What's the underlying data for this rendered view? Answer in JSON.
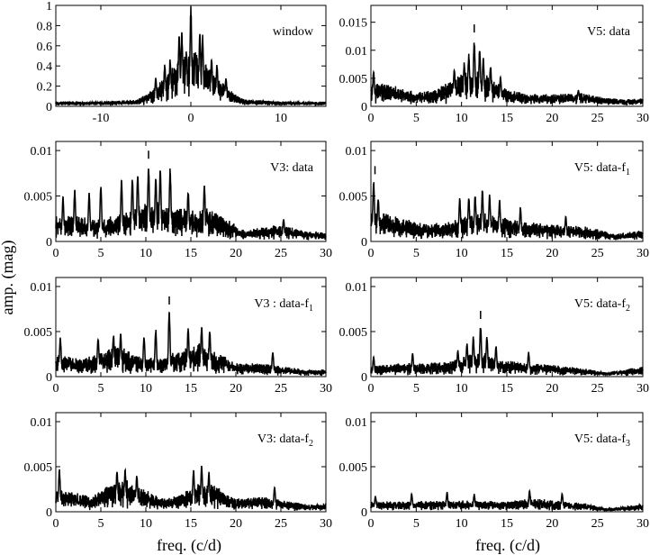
{
  "figure": {
    "ylabel": "amp. (mag)",
    "xlabel": "freq. (c/d)"
  },
  "chart_data": [
    {
      "type": "line",
      "title": "window",
      "xlim": [
        -15,
        15
      ],
      "ylim": [
        0,
        1
      ],
      "xticks": [
        -10,
        0,
        10
      ],
      "xticklabels": [
        "-10",
        "0",
        "10"
      ],
      "yticks": [
        0,
        0.2,
        0.4,
        0.6,
        0.8,
        1
      ],
      "yticklabels": [
        "0",
        "0.2",
        "0.4",
        "0.6",
        "0.8",
        "1"
      ],
      "marker": null,
      "peaks": [
        [
          -3.9,
          0.29
        ],
        [
          -2.9,
          0.42
        ],
        [
          -2.3,
          0.48
        ],
        [
          -1.3,
          0.72
        ],
        [
          -1.0,
          0.74
        ],
        [
          -0.5,
          0.55
        ],
        [
          0,
          1.0
        ],
        [
          0.5,
          0.55
        ],
        [
          1.0,
          0.74
        ],
        [
          1.3,
          0.72
        ],
        [
          2.3,
          0.48
        ],
        [
          2.9,
          0.42
        ],
        [
          3.9,
          0.29
        ]
      ],
      "envelope": [
        [
          -15,
          0.05
        ],
        [
          -10,
          0.05
        ],
        [
          -6,
          0.07
        ],
        [
          -5,
          0.12
        ],
        [
          -4,
          0.2
        ],
        [
          -3,
          0.3
        ],
        [
          -2,
          0.42
        ],
        [
          -1,
          0.52
        ],
        [
          0,
          0.55
        ],
        [
          1,
          0.52
        ],
        [
          2,
          0.42
        ],
        [
          3,
          0.3
        ],
        [
          4,
          0.2
        ],
        [
          5,
          0.12
        ],
        [
          6,
          0.07
        ],
        [
          10,
          0.05
        ],
        [
          15,
          0.05
        ]
      ]
    },
    {
      "type": "line",
      "title": "V5: data",
      "xlim": [
        0,
        30
      ],
      "ylim": [
        0,
        0.018
      ],
      "xticks": [
        0,
        5,
        10,
        15,
        20,
        25,
        30
      ],
      "xticklabels": [
        "0",
        "5",
        "10",
        "15",
        "20",
        "25",
        "30"
      ],
      "yticks": [
        0,
        0.005,
        0.01,
        0.015
      ],
      "yticklabels": [
        "0",
        "0.005",
        "0.01",
        "0.015"
      ],
      "marker": 11.4,
      "peaks": [
        [
          0.3,
          0.0065
        ],
        [
          9.2,
          0.007
        ],
        [
          10.3,
          0.008
        ],
        [
          10.8,
          0.0095
        ],
        [
          11.4,
          0.0122
        ],
        [
          12.0,
          0.0105
        ],
        [
          12.4,
          0.009
        ],
        [
          13.2,
          0.0075
        ],
        [
          14.3,
          0.0055
        ],
        [
          22.9,
          0.003
        ]
      ],
      "envelope": [
        [
          0,
          0.0045
        ],
        [
          2,
          0.004
        ],
        [
          5,
          0.0025
        ],
        [
          7,
          0.003
        ],
        [
          8.5,
          0.0045
        ],
        [
          10,
          0.0058
        ],
        [
          11.5,
          0.0065
        ],
        [
          13,
          0.0055
        ],
        [
          15,
          0.003
        ],
        [
          18,
          0.0022
        ],
        [
          20,
          0.0022
        ],
        [
          23,
          0.0025
        ],
        [
          26,
          0.0015
        ],
        [
          28,
          0.0013
        ],
        [
          30,
          0.0015
        ]
      ]
    },
    {
      "type": "line",
      "title": "V3: data",
      "xlim": [
        0,
        30
      ],
      "ylim": [
        0,
        0.011
      ],
      "xticks": [
        0,
        5,
        10,
        15,
        20,
        25,
        30
      ],
      "xticklabels": [
        "0",
        "5",
        "10",
        "15",
        "20",
        "25",
        "30"
      ],
      "yticks": [
        0,
        0.005,
        0.01
      ],
      "yticklabels": [
        "0",
        "0.005",
        "0.01"
      ],
      "marker": 10.3,
      "peaks": [
        [
          0.8,
          0.005
        ],
        [
          2.1,
          0.0058
        ],
        [
          3.7,
          0.0055
        ],
        [
          5.0,
          0.0062
        ],
        [
          7.3,
          0.0068
        ],
        [
          8.5,
          0.0072
        ],
        [
          9.1,
          0.0078
        ],
        [
          10.3,
          0.0085
        ],
        [
          11.1,
          0.0072
        ],
        [
          11.6,
          0.0082
        ],
        [
          12.7,
          0.0082
        ],
        [
          14.7,
          0.0058
        ],
        [
          16.5,
          0.0064
        ],
        [
          25.3,
          0.0026
        ]
      ],
      "envelope": [
        [
          0,
          0.003
        ],
        [
          3,
          0.0028
        ],
        [
          5,
          0.0025
        ],
        [
          7,
          0.003
        ],
        [
          9,
          0.0042
        ],
        [
          11,
          0.0045
        ],
        [
          13,
          0.004
        ],
        [
          15,
          0.0035
        ],
        [
          17,
          0.0038
        ],
        [
          19,
          0.0025
        ],
        [
          21,
          0.0012
        ],
        [
          24,
          0.0018
        ],
        [
          26,
          0.0017
        ],
        [
          28,
          0.0012
        ],
        [
          30,
          0.001
        ]
      ]
    },
    {
      "type": "line",
      "title": "V5: data-f",
      "title_sub": "1",
      "xlim": [
        0,
        30
      ],
      "ylim": [
        0,
        0.011
      ],
      "xticks": [
        0,
        5,
        10,
        15,
        20,
        25,
        30
      ],
      "xticklabels": [
        "0",
        "5",
        "10",
        "15",
        "20",
        "25",
        "30"
      ],
      "yticks": [
        0,
        0.005,
        0.01
      ],
      "yticklabels": [
        "0",
        "0.005",
        "0.01"
      ],
      "marker": 0.45,
      "peaks": [
        [
          0.3,
          0.0068
        ],
        [
          0.8,
          0.005
        ],
        [
          9.8,
          0.0048
        ],
        [
          10.8,
          0.005
        ],
        [
          11.5,
          0.0052
        ],
        [
          12.3,
          0.0058
        ],
        [
          13.1,
          0.0052
        ],
        [
          14.2,
          0.0046
        ],
        [
          16.5,
          0.0038
        ],
        [
          21.5,
          0.0028
        ]
      ],
      "envelope": [
        [
          0,
          0.0035
        ],
        [
          2,
          0.0032
        ],
        [
          5,
          0.0022
        ],
        [
          8,
          0.002
        ],
        [
          10,
          0.0028
        ],
        [
          12,
          0.0033
        ],
        [
          14,
          0.0028
        ],
        [
          17,
          0.0022
        ],
        [
          20,
          0.002
        ],
        [
          23,
          0.0018
        ],
        [
          25,
          0.0014
        ],
        [
          27,
          0.0008
        ],
        [
          29,
          0.0012
        ],
        [
          30,
          0.0012
        ]
      ]
    },
    {
      "type": "line",
      "title": "V3 : data-f",
      "title_sub": "1",
      "xlim": [
        0,
        30
      ],
      "ylim": [
        0,
        0.011
      ],
      "xticks": [
        0,
        5,
        10,
        15,
        20,
        25,
        30
      ],
      "xticklabels": [
        "0",
        "5",
        "10",
        "15",
        "20",
        "25",
        "30"
      ],
      "yticks": [
        0,
        0.005,
        0.01
      ],
      "yticklabels": [
        "0",
        "0.005",
        "0.01"
      ],
      "marker": 12.6,
      "peaks": [
        [
          0.5,
          0.0045
        ],
        [
          4.7,
          0.0045
        ],
        [
          6.4,
          0.0048
        ],
        [
          7.2,
          0.005
        ],
        [
          9.8,
          0.0046
        ],
        [
          11.1,
          0.0054
        ],
        [
          12.6,
          0.0074
        ],
        [
          14.7,
          0.0055
        ],
        [
          16.2,
          0.0058
        ],
        [
          17.1,
          0.0052
        ],
        [
          24.1,
          0.0028
        ]
      ],
      "envelope": [
        [
          0,
          0.0025
        ],
        [
          3,
          0.002
        ],
        [
          5,
          0.0028
        ],
        [
          7,
          0.0035
        ],
        [
          9,
          0.0025
        ],
        [
          11,
          0.002
        ],
        [
          12.5,
          0.0025
        ],
        [
          14,
          0.003
        ],
        [
          16,
          0.0038
        ],
        [
          18,
          0.0028
        ],
        [
          20,
          0.0015
        ],
        [
          23,
          0.0015
        ],
        [
          25,
          0.0012
        ],
        [
          28,
          0.0008
        ],
        [
          30,
          0.0008
        ]
      ]
    },
    {
      "type": "line",
      "title": "V5: data-f",
      "title_sub": "2",
      "xlim": [
        0,
        30
      ],
      "ylim": [
        0,
        0.011
      ],
      "xticks": [
        0,
        5,
        10,
        15,
        20,
        25,
        30
      ],
      "xticklabels": [
        "0",
        "5",
        "10",
        "15",
        "20",
        "25",
        "30"
      ],
      "yticks": [
        0,
        0.005,
        0.01
      ],
      "yticklabels": [
        "0",
        "0.005",
        "0.01"
      ],
      "marker": 12.1,
      "peaks": [
        [
          0.3,
          0.0022
        ],
        [
          4.6,
          0.0026
        ],
        [
          9.6,
          0.003
        ],
        [
          10.6,
          0.0038
        ],
        [
          11.3,
          0.0045
        ],
        [
          12.1,
          0.0058
        ],
        [
          12.8,
          0.0045
        ],
        [
          13.8,
          0.0035
        ],
        [
          17.4,
          0.0028
        ]
      ],
      "envelope": [
        [
          0,
          0.0012
        ],
        [
          3,
          0.0015
        ],
        [
          6,
          0.0015
        ],
        [
          9,
          0.0018
        ],
        [
          11,
          0.0025
        ],
        [
          12.5,
          0.0028
        ],
        [
          14,
          0.002
        ],
        [
          17,
          0.0017
        ],
        [
          20,
          0.0013
        ],
        [
          23,
          0.001
        ],
        [
          26,
          0.0005
        ],
        [
          28,
          0.0008
        ],
        [
          30,
          0.0012
        ]
      ]
    },
    {
      "type": "line",
      "title": "V3: data-f",
      "title_sub": "2",
      "xlim": [
        0,
        30
      ],
      "ylim": [
        0,
        0.011
      ],
      "xticks": [
        0,
        5,
        10,
        15,
        20,
        25,
        30
      ],
      "xticklabels": [
        "0",
        "5",
        "10",
        "15",
        "20",
        "25",
        "30"
      ],
      "yticks": [
        0,
        0.005,
        0.01
      ],
      "yticklabels": [
        "0",
        "0.005",
        "0.01"
      ],
      "marker": null,
      "peaks": [
        [
          0.4,
          0.0048
        ],
        [
          6.8,
          0.0047
        ],
        [
          7.7,
          0.0048
        ],
        [
          9.0,
          0.0042
        ],
        [
          15.3,
          0.0048
        ],
        [
          16.2,
          0.0052
        ],
        [
          17.0,
          0.0045
        ],
        [
          24.3,
          0.0028
        ]
      ],
      "envelope": [
        [
          0,
          0.0028
        ],
        [
          2,
          0.0022
        ],
        [
          4,
          0.0018
        ],
        [
          6,
          0.0032
        ],
        [
          8,
          0.0035
        ],
        [
          10,
          0.0025
        ],
        [
          12,
          0.0015
        ],
        [
          13.5,
          0.0018
        ],
        [
          16,
          0.0035
        ],
        [
          18,
          0.0028
        ],
        [
          20,
          0.0015
        ],
        [
          23,
          0.0017
        ],
        [
          25,
          0.0014
        ],
        [
          28,
          0.0008
        ],
        [
          30,
          0.001
        ]
      ]
    },
    {
      "type": "line",
      "title": "V5: data-f",
      "title_sub": "3",
      "xlim": [
        0,
        30
      ],
      "ylim": [
        0,
        0.011
      ],
      "xticks": [
        0,
        5,
        10,
        15,
        20,
        25,
        30
      ],
      "xticklabels": [
        "0",
        "5",
        "10",
        "15",
        "20",
        "25",
        "30"
      ],
      "yticks": [
        0,
        0.005,
        0.01
      ],
      "yticklabels": [
        "0",
        "0.005",
        "0.01"
      ],
      "marker": null,
      "peaks": [
        [
          0.5,
          0.0018
        ],
        [
          4.5,
          0.002
        ],
        [
          8.4,
          0.0022
        ],
        [
          11.4,
          0.002
        ],
        [
          17.5,
          0.0024
        ],
        [
          21.1,
          0.0021
        ]
      ],
      "envelope": [
        [
          0,
          0.0012
        ],
        [
          5,
          0.0012
        ],
        [
          9,
          0.0013
        ],
        [
          12,
          0.0012
        ],
        [
          15,
          0.0012
        ],
        [
          18,
          0.0015
        ],
        [
          21,
          0.0012
        ],
        [
          24,
          0.0009
        ],
        [
          26,
          0.0004
        ],
        [
          28,
          0.0006
        ],
        [
          30,
          0.0009
        ]
      ]
    }
  ]
}
